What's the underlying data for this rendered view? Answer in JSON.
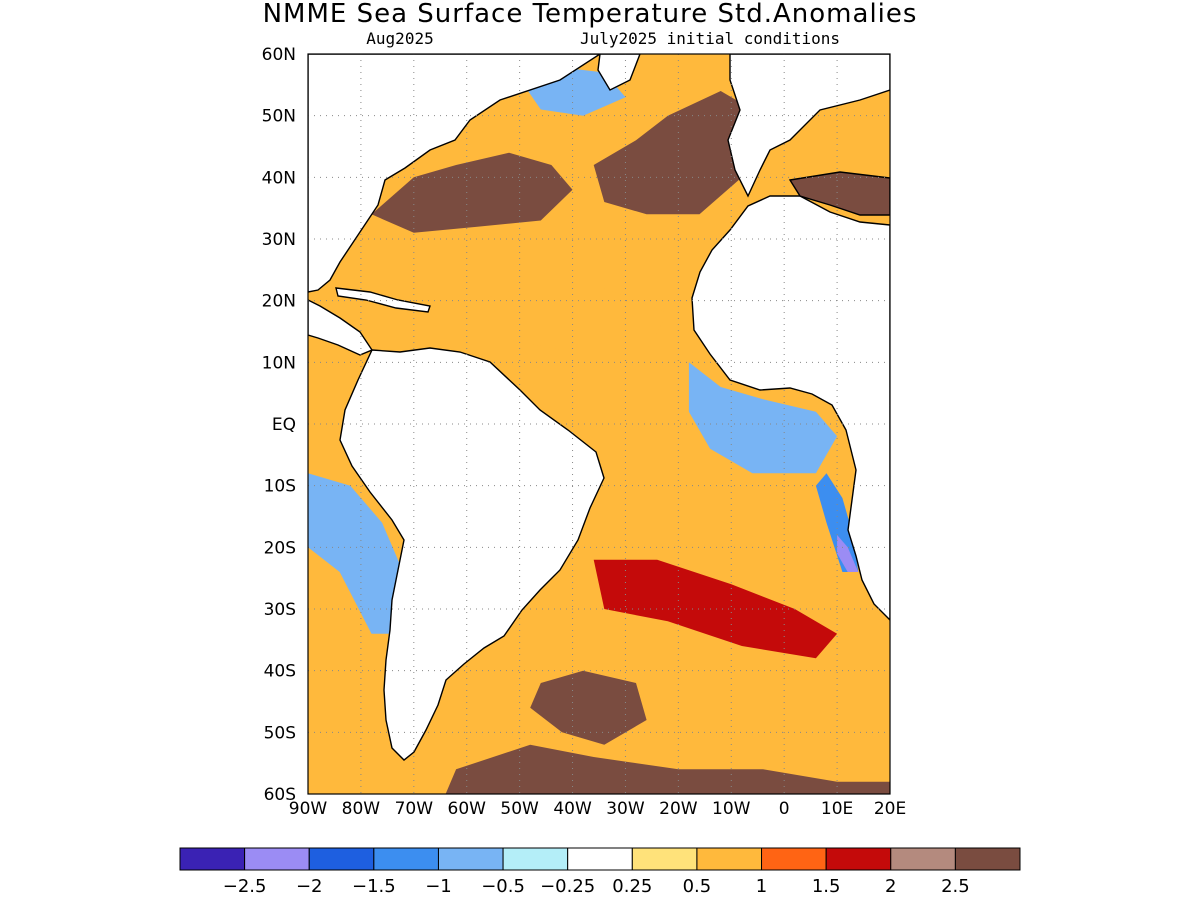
{
  "title": "NMME Sea Surface Temperature Std.Anomalies",
  "subtitle_left": "Aug2025",
  "subtitle_right": "July2025 initial conditions",
  "map": {
    "lon_range": [
      -90,
      20
    ],
    "lat_range": [
      -60,
      60
    ],
    "lat_ticks": [
      {
        "value": 60,
        "label": "60N"
      },
      {
        "value": 50,
        "label": "50N"
      },
      {
        "value": 40,
        "label": "40N"
      },
      {
        "value": 30,
        "label": "30N"
      },
      {
        "value": 20,
        "label": "20N"
      },
      {
        "value": 10,
        "label": "10N"
      },
      {
        "value": 0,
        "label": "EQ"
      },
      {
        "value": -10,
        "label": "10S"
      },
      {
        "value": -20,
        "label": "20S"
      },
      {
        "value": -30,
        "label": "30S"
      },
      {
        "value": -40,
        "label": "40S"
      },
      {
        "value": -50,
        "label": "50S"
      },
      {
        "value": -60,
        "label": "60S"
      }
    ],
    "lon_ticks": [
      {
        "value": -90,
        "label": "90W"
      },
      {
        "value": -80,
        "label": "80W"
      },
      {
        "value": -70,
        "label": "70W"
      },
      {
        "value": -60,
        "label": "60W"
      },
      {
        "value": -50,
        "label": "50W"
      },
      {
        "value": -40,
        "label": "40W"
      },
      {
        "value": -30,
        "label": "30W"
      },
      {
        "value": -20,
        "label": "20W"
      },
      {
        "value": -10,
        "label": "10W"
      },
      {
        "value": 0,
        "label": "0"
      },
      {
        "value": 10,
        "label": "10E"
      },
      {
        "value": 20,
        "label": "20E"
      }
    ],
    "land_color": "#ffffff",
    "coast_color": "#000000",
    "grid": "dotted"
  },
  "colorbar": {
    "colors": [
      "#3a22b4",
      "#9b8cf4",
      "#1e5fe0",
      "#3c8ef0",
      "#78b4f4",
      "#b4eef8",
      "#ffffff",
      "#ffe27a",
      "#ffb93c",
      "#ff6414",
      "#c40a0a",
      "#b48a7e",
      "#7a4c40"
    ],
    "labels": [
      "−2.5",
      "−2",
      "−1.5",
      "−1",
      "−0.5",
      "−0.25",
      "0.25",
      "0.5",
      "1",
      "1.5",
      "2",
      "2.5"
    ]
  },
  "anomaly_regions": [
    {
      "name": "gulf-stream-extreme-warm",
      "level": 2.5,
      "points": [
        [
          -78,
          34
        ],
        [
          -70,
          40
        ],
        [
          -62,
          42
        ],
        [
          -52,
          44
        ],
        [
          -44,
          42
        ],
        [
          -40,
          38
        ],
        [
          -46,
          33
        ],
        [
          -58,
          32
        ],
        [
          -70,
          31
        ]
      ]
    },
    {
      "name": "north-atlantic-central-extreme-warm",
      "level": 2.5,
      "points": [
        [
          -36,
          42
        ],
        [
          -28,
          46
        ],
        [
          -22,
          50
        ],
        [
          -12,
          54
        ],
        [
          -4,
          50
        ],
        [
          -8,
          40
        ],
        [
          -16,
          34
        ],
        [
          -26,
          34
        ],
        [
          -34,
          36
        ]
      ]
    },
    {
      "name": "labrador-sea-cool",
      "level": -1,
      "points": [
        [
          -50,
          56
        ],
        [
          -44,
          58
        ],
        [
          -34,
          57
        ],
        [
          -30,
          53
        ],
        [
          -38,
          50
        ],
        [
          -46,
          51
        ]
      ]
    },
    {
      "name": "tropical-north-atlantic-mild-warm",
      "level": 0.5,
      "points": [
        [
          -58,
          20
        ],
        [
          -50,
          22
        ],
        [
          -34,
          22
        ],
        [
          -22,
          18
        ],
        [
          -26,
          12
        ],
        [
          -42,
          12
        ],
        [
          -54,
          14
        ]
      ]
    },
    {
      "name": "gulf-of-guinea-cool",
      "level": -1,
      "points": [
        [
          -18,
          10
        ],
        [
          -12,
          6
        ],
        [
          -4,
          4
        ],
        [
          6,
          2
        ],
        [
          10,
          -2
        ],
        [
          6,
          -8
        ],
        [
          -6,
          -8
        ],
        [
          -14,
          -4
        ],
        [
          -18,
          2
        ]
      ]
    },
    {
      "name": "benguela-cool",
      "level": -1.5,
      "points": [
        [
          8,
          -8
        ],
        [
          11,
          -12
        ],
        [
          13,
          -18
        ],
        [
          14,
          -24
        ],
        [
          11,
          -24
        ],
        [
          8,
          -16
        ],
        [
          6,
          -10
        ]
      ]
    },
    {
      "name": "benguela-extreme-cool",
      "level": -2.5,
      "points": [
        [
          10,
          -18
        ],
        [
          12,
          -20
        ],
        [
          14,
          -24
        ],
        [
          12,
          -24
        ],
        [
          10,
          -21
        ]
      ]
    },
    {
      "name": "peru-chile-cool",
      "level": -1,
      "points": [
        [
          -90,
          -8
        ],
        [
          -82,
          -10
        ],
        [
          -76,
          -16
        ],
        [
          -72,
          -24
        ],
        [
          -72,
          -34
        ],
        [
          -78,
          -34
        ],
        [
          -84,
          -24
        ],
        [
          -90,
          -20
        ]
      ]
    },
    {
      "name": "south-atlantic-extreme-warm",
      "level": 2.5,
      "points": [
        [
          -46,
          -42
        ],
        [
          -38,
          -40
        ],
        [
          -28,
          -42
        ],
        [
          -26,
          -48
        ],
        [
          -34,
          -52
        ],
        [
          -42,
          -50
        ],
        [
          -48,
          -46
        ]
      ]
    },
    {
      "name": "southern-ocean-extreme-warm",
      "level": 2.5,
      "points": [
        [
          -62,
          -56
        ],
        [
          -48,
          -52
        ],
        [
          -36,
          -54
        ],
        [
          -20,
          -56
        ],
        [
          -4,
          -56
        ],
        [
          10,
          -58
        ],
        [
          20,
          -58
        ],
        [
          20,
          -60
        ],
        [
          -64,
          -60
        ]
      ]
    },
    {
      "name": "south-atlantic-warm-band",
      "level": 1.5,
      "points": [
        [
          -36,
          -22
        ],
        [
          -24,
          -22
        ],
        [
          -10,
          -26
        ],
        [
          2,
          -30
        ],
        [
          10,
          -34
        ],
        [
          6,
          -38
        ],
        [
          -8,
          -36
        ],
        [
          -22,
          -32
        ],
        [
          -34,
          -30
        ]
      ]
    }
  ]
}
